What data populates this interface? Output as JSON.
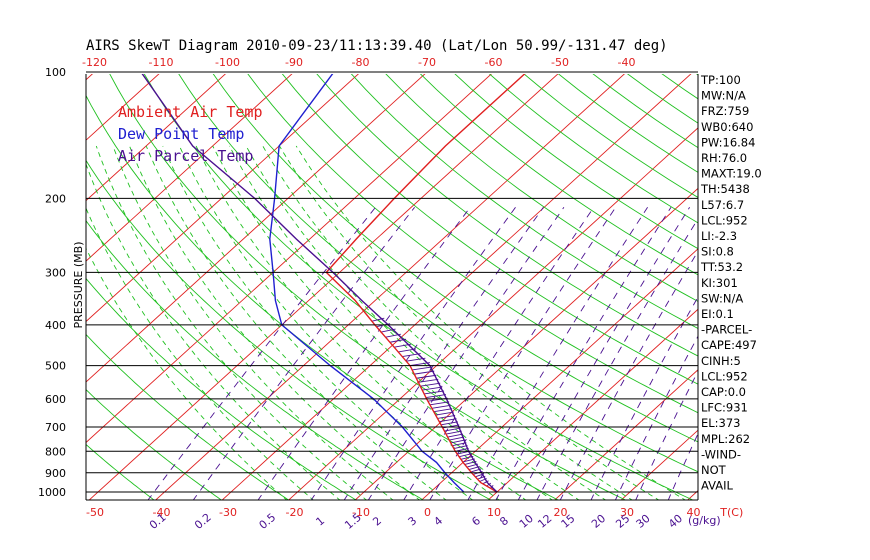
{
  "chart_data": {
    "type": "line",
    "title": "AIRS SkewT Diagram 2010-09-23/11:13:39.40 (Lat/Lon 50.99/-131.47 deg)",
    "ylabel": "PRESSURE (MB)",
    "xlabel": "T(C)",
    "mixing_ratio_unit": "(g/kg)",
    "y_ticks": [
      100,
      200,
      300,
      400,
      500,
      600,
      700,
      800,
      900,
      1000
    ],
    "x_ticks_bottom": [
      -50,
      -40,
      -30,
      -20,
      -10,
      0,
      10,
      20,
      30,
      40
    ],
    "x_ticks_top": [
      -120,
      -110,
      -100,
      -90,
      -80,
      -70,
      -60,
      -50,
      -40
    ],
    "mixing_ratio_labels": [
      "0.1",
      "0.2",
      "0.5",
      "1",
      "1.5",
      "2",
      "3",
      "4",
      "6",
      "8",
      "10",
      "12",
      "15",
      "20",
      "25",
      "30",
      "40"
    ],
    "legend": [
      {
        "label": "Ambient Air Temp",
        "color": "#e02020"
      },
      {
        "label": "Dew Point Temp",
        "color": "#2020d0"
      },
      {
        "label": "Air Parcel Temp",
        "color": "#4a1090"
      }
    ],
    "series": [
      {
        "name": "Ambient Air Temp",
        "color": "#e02020",
        "points": [
          {
            "p": 1000,
            "t": 10
          },
          {
            "p": 950,
            "t": 6
          },
          {
            "p": 900,
            "t": 3
          },
          {
            "p": 850,
            "t": 0
          },
          {
            "p": 800,
            "t": -3
          },
          {
            "p": 700,
            "t": -9
          },
          {
            "p": 600,
            "t": -16
          },
          {
            "p": 500,
            "t": -24
          },
          {
            "p": 400,
            "t": -36
          },
          {
            "p": 350,
            "t": -43
          },
          {
            "p": 300,
            "t": -52
          },
          {
            "p": 250,
            "t": -53
          },
          {
            "p": 200,
            "t": -54
          },
          {
            "p": 150,
            "t": -55
          },
          {
            "p": 100,
            "t": -55
          }
        ]
      },
      {
        "name": "Dew Point Temp",
        "color": "#2020d0",
        "points": [
          {
            "p": 1000,
            "t": 5
          },
          {
            "p": 950,
            "t": 2
          },
          {
            "p": 900,
            "t": -1
          },
          {
            "p": 850,
            "t": -4
          },
          {
            "p": 800,
            "t": -8
          },
          {
            "p": 700,
            "t": -15
          },
          {
            "p": 600,
            "t": -24
          },
          {
            "p": 500,
            "t": -36
          },
          {
            "p": 400,
            "t": -50
          },
          {
            "p": 350,
            "t": -55
          },
          {
            "p": 300,
            "t": -60
          },
          {
            "p": 250,
            "t": -66
          },
          {
            "p": 200,
            "t": -72
          },
          {
            "p": 150,
            "t": -80
          },
          {
            "p": 100,
            "t": -84
          }
        ]
      },
      {
        "name": "Air Parcel Temp",
        "color": "#4a1090",
        "points": [
          {
            "p": 1000,
            "t": 10
          },
          {
            "p": 950,
            "t": 7
          },
          {
            "p": 900,
            "t": 4.5
          },
          {
            "p": 850,
            "t": 1.8
          },
          {
            "p": 800,
            "t": -1.0
          },
          {
            "p": 700,
            "t": -6.5
          },
          {
            "p": 600,
            "t": -13
          },
          {
            "p": 500,
            "t": -21
          },
          {
            "p": 400,
            "t": -34
          },
          {
            "p": 350,
            "t": -42
          },
          {
            "p": 300,
            "t": -51
          },
          {
            "p": 250,
            "t": -62
          },
          {
            "p": 200,
            "t": -75
          },
          {
            "p": 150,
            "t": -93
          },
          {
            "p": 100,
            "t": -113
          }
        ]
      }
    ],
    "indices": [
      "TP:100",
      "MW:N/A",
      "FRZ:759",
      "WB0:640",
      "PW:16.84",
      "RH:76.0",
      "MAXT:19.0",
      "TH:5438",
      "L57:6.7",
      "LCL:952",
      "LI:-2.3",
      "SI:0.8",
      "TT:53.2",
      "KI:301",
      "SW:N/A",
      "EI:0.1",
      "-PARCEL-",
      "CAPE:497",
      "CINH:5",
      "LCL:952",
      "CAP:0.0",
      "LFC:931",
      "EL:373",
      "MPL:262",
      "-WIND-",
      "NOT",
      "AVAIL"
    ],
    "colors": {
      "isotherm": "#e02020",
      "dry_adiabat": "#20c020",
      "moist_adiabat": "#20c020",
      "mixing_ratio": "#4a1090",
      "isobar": "#000000",
      "axis_label": "#e02020",
      "mixing_label": "#4a1090"
    }
  }
}
